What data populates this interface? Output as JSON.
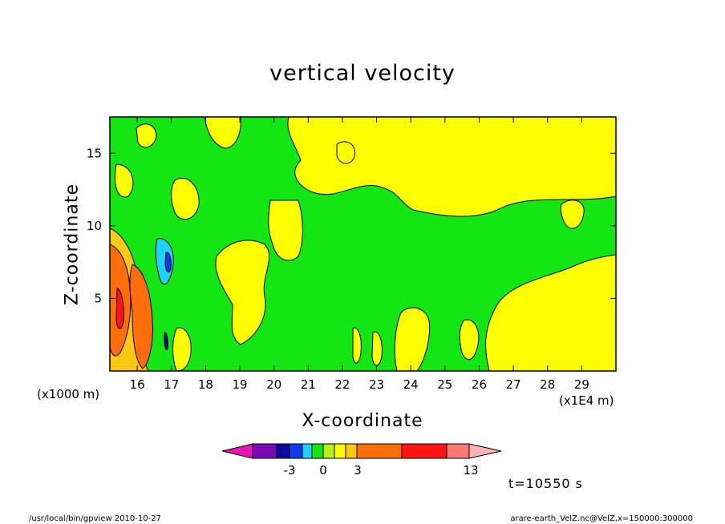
{
  "chart_data": {
    "type": "heatmap",
    "title": "vertical velocity",
    "xlabel": "X-coordinate",
    "ylabel": "Z-coordinate",
    "x_unit_label": "(x1000 m)",
    "x_scale_label": "(x1E4 m)",
    "xlim": [
      15.2,
      30.0
    ],
    "ylim": [
      0,
      17.5
    ],
    "xticks": [
      16,
      17,
      18,
      19,
      20,
      21,
      22,
      23,
      24,
      25,
      26,
      27,
      28,
      29
    ],
    "yticks": [
      5,
      10,
      15
    ],
    "colorbar": {
      "levels": [
        -13,
        -5,
        -3,
        -2,
        -1,
        0,
        1,
        2,
        3,
        8,
        13
      ],
      "colors": [
        "#e616b4",
        "#7a0ab4",
        "#0a0aa0",
        "#0a3cf0",
        "#1ed2ff",
        "#14e614",
        "#b4f014",
        "#ffff00",
        "#ffc814",
        "#ff6e0a",
        "#ff1414",
        "#ff7878",
        "#ffb4b4"
      ],
      "labels": [
        "-3",
        "0",
        "3",
        "13"
      ]
    },
    "time_label": "t=10550 s"
  },
  "footer": {
    "left": "/usr/local/bin/gpview   2010-10-27",
    "right": "arare-earth_VelZ.nc@VelZ,x=150000:300000"
  }
}
